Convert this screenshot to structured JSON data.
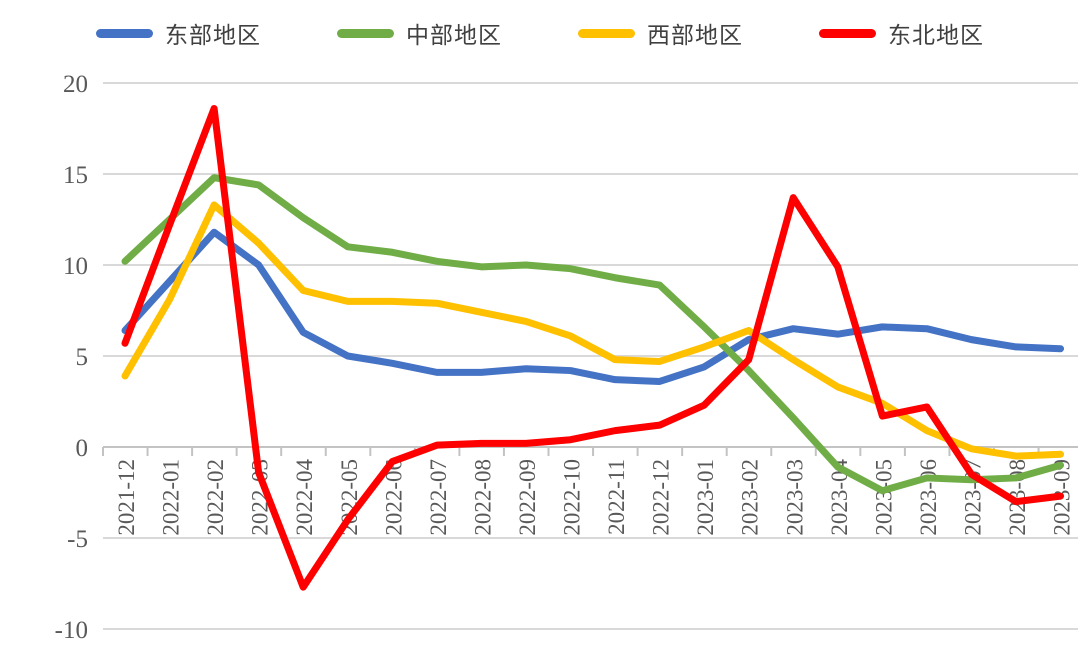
{
  "chart_data": {
    "type": "line",
    "title": "",
    "xlabel": "",
    "ylabel": "",
    "grid": true,
    "legend_position": "top",
    "ylim": [
      -10,
      20
    ],
    "yticks": [
      20,
      15,
      10,
      5,
      0,
      -5,
      -10
    ],
    "categories": [
      "2021-12",
      "2022-01",
      "2022-02",
      "2022-03",
      "2022-04",
      "2022-05",
      "2022-06",
      "2022-07",
      "2022-08",
      "2022-09",
      "2022-10",
      "2022-11",
      "2022-12",
      "2023-01",
      "2023-02",
      "2023-03",
      "2023-04",
      "2023-05",
      "2023-06",
      "2023-07",
      "2023-08",
      "2023-09"
    ],
    "series": [
      {
        "name": "东部地区",
        "color": "#4472C4",
        "values": [
          6.4,
          9.1,
          11.8,
          10.0,
          6.3,
          5.0,
          4.6,
          4.1,
          4.1,
          4.3,
          4.2,
          3.7,
          3.6,
          4.4,
          5.9,
          6.5,
          6.2,
          6.6,
          6.5,
          5.9,
          5.5,
          5.4
        ]
      },
      {
        "name": "中部地区",
        "color": "#70AD47",
        "values": [
          10.2,
          12.5,
          14.8,
          14.4,
          12.6,
          11.0,
          10.7,
          10.2,
          9.9,
          10.0,
          9.8,
          9.3,
          8.9,
          6.6,
          4.2,
          1.6,
          -1.1,
          -2.4,
          -1.7,
          -1.8,
          -1.7,
          -1.0
        ]
      },
      {
        "name": "西部地区",
        "color": "#FFC000",
        "values": [
          3.9,
          8.1,
          13.3,
          11.2,
          8.6,
          8.0,
          8.0,
          7.9,
          7.4,
          6.9,
          6.1,
          4.8,
          4.7,
          5.5,
          6.4,
          4.8,
          3.3,
          2.4,
          0.9,
          -0.1,
          -0.5,
          -0.4
        ]
      },
      {
        "name": "东北地区",
        "color": "#FF0000",
        "values": [
          5.7,
          12.2,
          18.6,
          -1.4,
          -7.7,
          -4.0,
          -0.8,
          0.1,
          0.2,
          0.2,
          0.4,
          0.9,
          1.2,
          2.3,
          4.8,
          13.7,
          9.9,
          1.7,
          2.2,
          -1.5,
          -3.0,
          -2.7
        ]
      }
    ]
  }
}
